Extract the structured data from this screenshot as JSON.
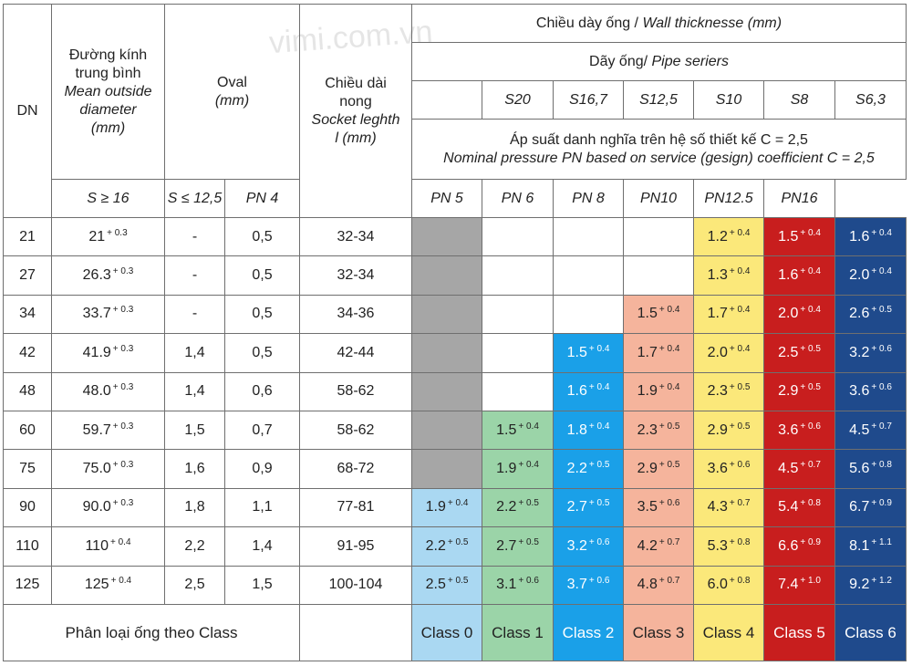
{
  "watermark": "vimi.com.vn",
  "header": {
    "dn": "DN",
    "diameter": {
      "vi_line1": "Đường kính",
      "vi_line2": "trung bình",
      "en_line1": "Mean outside",
      "en_line2": "diameter",
      "unit": "(mm)"
    },
    "oval": {
      "label": "Oval",
      "unit": "(mm)",
      "sub1": "S ≥ 16",
      "sub2": "S ≤ 12,5"
    },
    "socket": {
      "vi_line1": "Chiều dài",
      "vi_line2": "nong",
      "en": "Socket leghth",
      "unit": "l (mm)"
    },
    "wall": {
      "vi": "Chiều dày ống / ",
      "en": "Wall thicknesse (mm)"
    },
    "series": {
      "vi": "Dãy ống/ ",
      "en": "Pipe seriers"
    },
    "series_values": [
      "",
      "S20",
      "S16,7",
      "S12,5",
      "S10",
      "S8",
      "S6,3"
    ],
    "pressure": {
      "vi": "Áp suất danh nghĩa trên hệ số thiết kế C = 2,5",
      "en": "Nominal pressure PN based on service (gesign) coefficient C = 2,5"
    },
    "pn_values": [
      "PN 4",
      "PN 5",
      "PN 6",
      "PN 8",
      "PN10",
      "PN12.5",
      "PN16"
    ]
  },
  "colors": {
    "gray": "#a6a6a6",
    "class0": "#aad8f2",
    "class1": "#9bd4a8",
    "class2": "#1aa0e8",
    "class3": "#f5b49c",
    "class4": "#fbe87a",
    "class5": "#c81e1e",
    "class6": "#1f4a8c"
  },
  "rows": [
    {
      "dn": "21",
      "d": "21",
      "dt": "+ 0.3",
      "o1": "-",
      "o2": "0,5",
      "sock": "32-34",
      "pn": [
        [
          "",
          ""
        ],
        [
          "",
          ""
        ],
        [
          "",
          ""
        ],
        [
          "",
          ""
        ],
        [
          "1.2",
          "+ 0.4"
        ],
        [
          "1.5",
          "+ 0.4"
        ],
        [
          "1.6",
          "+ 0.4"
        ]
      ]
    },
    {
      "dn": "27",
      "d": "26.3",
      "dt": "+ 0.3",
      "o1": "-",
      "o2": "0,5",
      "sock": "32-34",
      "pn": [
        [
          "",
          ""
        ],
        [
          "",
          ""
        ],
        [
          "",
          ""
        ],
        [
          "",
          ""
        ],
        [
          "1.3",
          "+ 0.4"
        ],
        [
          "1.6",
          "+ 0.4"
        ],
        [
          "2.0",
          "+ 0.4"
        ]
      ]
    },
    {
      "dn": "34",
      "d": "33.7",
      "dt": "+ 0.3",
      "o1": "-",
      "o2": "0,5",
      "sock": "34-36",
      "pn": [
        [
          "",
          ""
        ],
        [
          "",
          ""
        ],
        [
          "",
          ""
        ],
        [
          "1.5",
          "+ 0.4"
        ],
        [
          "1.7",
          "+ 0.4"
        ],
        [
          "2.0",
          "+ 0.4"
        ],
        [
          "2.6",
          "+ 0.5"
        ]
      ]
    },
    {
      "dn": "42",
      "d": "41.9",
      "dt": "+ 0.3",
      "o1": "1,4",
      "o2": "0,5",
      "sock": "42-44",
      "pn": [
        [
          "",
          ""
        ],
        [
          "",
          ""
        ],
        [
          "1.5",
          "+ 0.4"
        ],
        [
          "1.7",
          "+ 0.4"
        ],
        [
          "2.0",
          "+ 0.4"
        ],
        [
          "2.5",
          "+ 0.5"
        ],
        [
          "3.2",
          "+ 0.6"
        ]
      ]
    },
    {
      "dn": "48",
      "d": "48.0",
      "dt": "+ 0.3",
      "o1": "1,4",
      "o2": "0,6",
      "sock": "58-62",
      "pn": [
        [
          "",
          ""
        ],
        [
          "",
          ""
        ],
        [
          "1.6",
          "+ 0.4"
        ],
        [
          "1.9",
          "+ 0.4"
        ],
        [
          "2.3",
          "+ 0.5"
        ],
        [
          "2.9",
          "+ 0.5"
        ],
        [
          "3.6",
          "+ 0.6"
        ]
      ]
    },
    {
      "dn": "60",
      "d": "59.7",
      "dt": "+ 0.3",
      "o1": "1,5",
      "o2": "0,7",
      "sock": "58-62",
      "pn": [
        [
          "",
          ""
        ],
        [
          "1.5",
          "+ 0.4"
        ],
        [
          "1.8",
          "+ 0.4"
        ],
        [
          "2.3",
          "+ 0.5"
        ],
        [
          "2.9",
          "+ 0.5"
        ],
        [
          "3.6",
          "+ 0.6"
        ],
        [
          "4.5",
          "+ 0.7"
        ]
      ]
    },
    {
      "dn": "75",
      "d": "75.0",
      "dt": "+ 0.3",
      "o1": "1,6",
      "o2": "0,9",
      "sock": "68-72",
      "pn": [
        [
          "",
          ""
        ],
        [
          "1.9",
          "+ 0.4"
        ],
        [
          "2.2",
          "+ 0.5"
        ],
        [
          "2.9",
          "+ 0.5"
        ],
        [
          "3.6",
          "+ 0.6"
        ],
        [
          "4.5",
          "+ 0.7"
        ],
        [
          "5.6",
          "+ 0.8"
        ]
      ]
    },
    {
      "dn": "90",
      "d": "90.0",
      "dt": "+ 0.3",
      "o1": "1,8",
      "o2": "1,1",
      "sock": "77-81",
      "pn": [
        [
          "1.9",
          "+ 0.4"
        ],
        [
          "2.2",
          "+ 0.5"
        ],
        [
          "2.7",
          "+ 0.5"
        ],
        [
          "3.5",
          "+ 0.6"
        ],
        [
          "4.3",
          "+ 0.7"
        ],
        [
          "5.4",
          "+ 0.8"
        ],
        [
          "6.7",
          "+ 0.9"
        ]
      ]
    },
    {
      "dn": "110",
      "d": "110",
      "dt": "+ 0.4",
      "o1": "2,2",
      "o2": "1,4",
      "sock": "91-95",
      "pn": [
        [
          "2.2",
          "+ 0.5"
        ],
        [
          "2.7",
          "+ 0.5"
        ],
        [
          "3.2",
          "+ 0.6"
        ],
        [
          "4.2",
          "+ 0.7"
        ],
        [
          "5.3",
          "+ 0.8"
        ],
        [
          "6.6",
          "+ 0.9"
        ],
        [
          "8.1",
          "+ 1.1"
        ]
      ]
    },
    {
      "dn": "125",
      "d": "125",
      "dt": "+ 0.4",
      "o1": "2,5",
      "o2": "1,5",
      "sock": "100-104",
      "pn": [
        [
          "2.5",
          "+ 0.5"
        ],
        [
          "3.1",
          "+ 0.6"
        ],
        [
          "3.7",
          "+ 0.6"
        ],
        [
          "4.8",
          "+ 0.7"
        ],
        [
          "6.0",
          "+ 0.8"
        ],
        [
          "7.4",
          "+ 1.0"
        ],
        [
          "9.2",
          "+ 1.2"
        ]
      ]
    }
  ],
  "footer": {
    "label": "Phân loại ống theo Class",
    "classes": [
      "Class 0",
      "Class 1",
      "Class 2",
      "Class 3",
      "Class 4",
      "Class 5",
      "Class 6"
    ]
  }
}
